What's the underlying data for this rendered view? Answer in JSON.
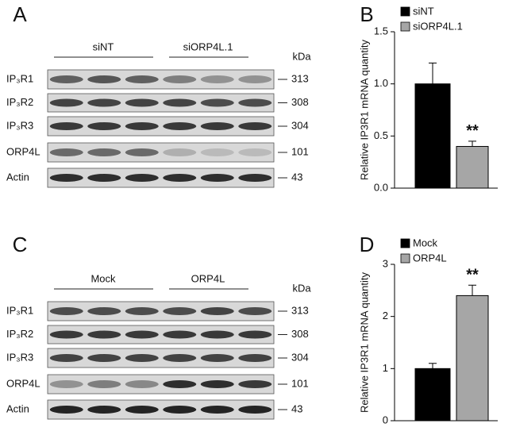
{
  "figure_labels": [
    "A",
    "B",
    "C",
    "D"
  ],
  "blots": [
    {
      "groups": [
        "siNT",
        "siORP4L.1"
      ],
      "unit": "kDa",
      "rows": [
        {
          "label": "IP₃R1",
          "kda": 313
        },
        {
          "label": "IP₃R2",
          "kda": 308
        },
        {
          "label": "IP₃R3",
          "kda": 304
        },
        {
          "label": "ORP4L",
          "kda": 101
        },
        {
          "label": "Actin",
          "kda": 43
        }
      ]
    },
    {
      "groups": [
        "Mock",
        "ORP4L"
      ],
      "unit": "kDa",
      "rows": [
        {
          "label": "IP₃R1",
          "kda": 313
        },
        {
          "label": "IP₃R2",
          "kda": 308
        },
        {
          "label": "IP₃R3",
          "kda": 304
        },
        {
          "label": "ORP4L",
          "kda": 101
        },
        {
          "label": "Actin",
          "kda": 43
        }
      ]
    }
  ],
  "chart_data": [
    {
      "type": "bar",
      "ylabel": "Relative IP3R1 mRNA quantity",
      "annotation": "**",
      "series": [
        {
          "name": "siNT",
          "color": "#000000",
          "values": [
            1.0
          ],
          "errors": [
            0.2
          ]
        },
        {
          "name": "siORP4L.1",
          "color": "#a6a6a6",
          "values": [
            0.4
          ],
          "errors": [
            0.05
          ]
        }
      ],
      "ylim": [
        0,
        1.5
      ],
      "yticks": [
        {
          "value": 0,
          "label": "0.0"
        },
        0.5,
        {
          "value": 1,
          "label": "1.0"
        },
        1.5
      ]
    },
    {
      "type": "bar",
      "ylabel": "Relative IP3R1 mRNA quantity",
      "annotation": "**",
      "series": [
        {
          "name": "Mock",
          "color": "#000000",
          "values": [
            1.0
          ],
          "errors": [
            0.1
          ]
        },
        {
          "name": "ORP4L",
          "color": "#a6a6a6",
          "values": [
            2.4
          ],
          "errors": [
            0.2
          ]
        }
      ],
      "ylim": [
        0,
        3
      ],
      "yticks": [
        0,
        1,
        2,
        3
      ]
    }
  ]
}
